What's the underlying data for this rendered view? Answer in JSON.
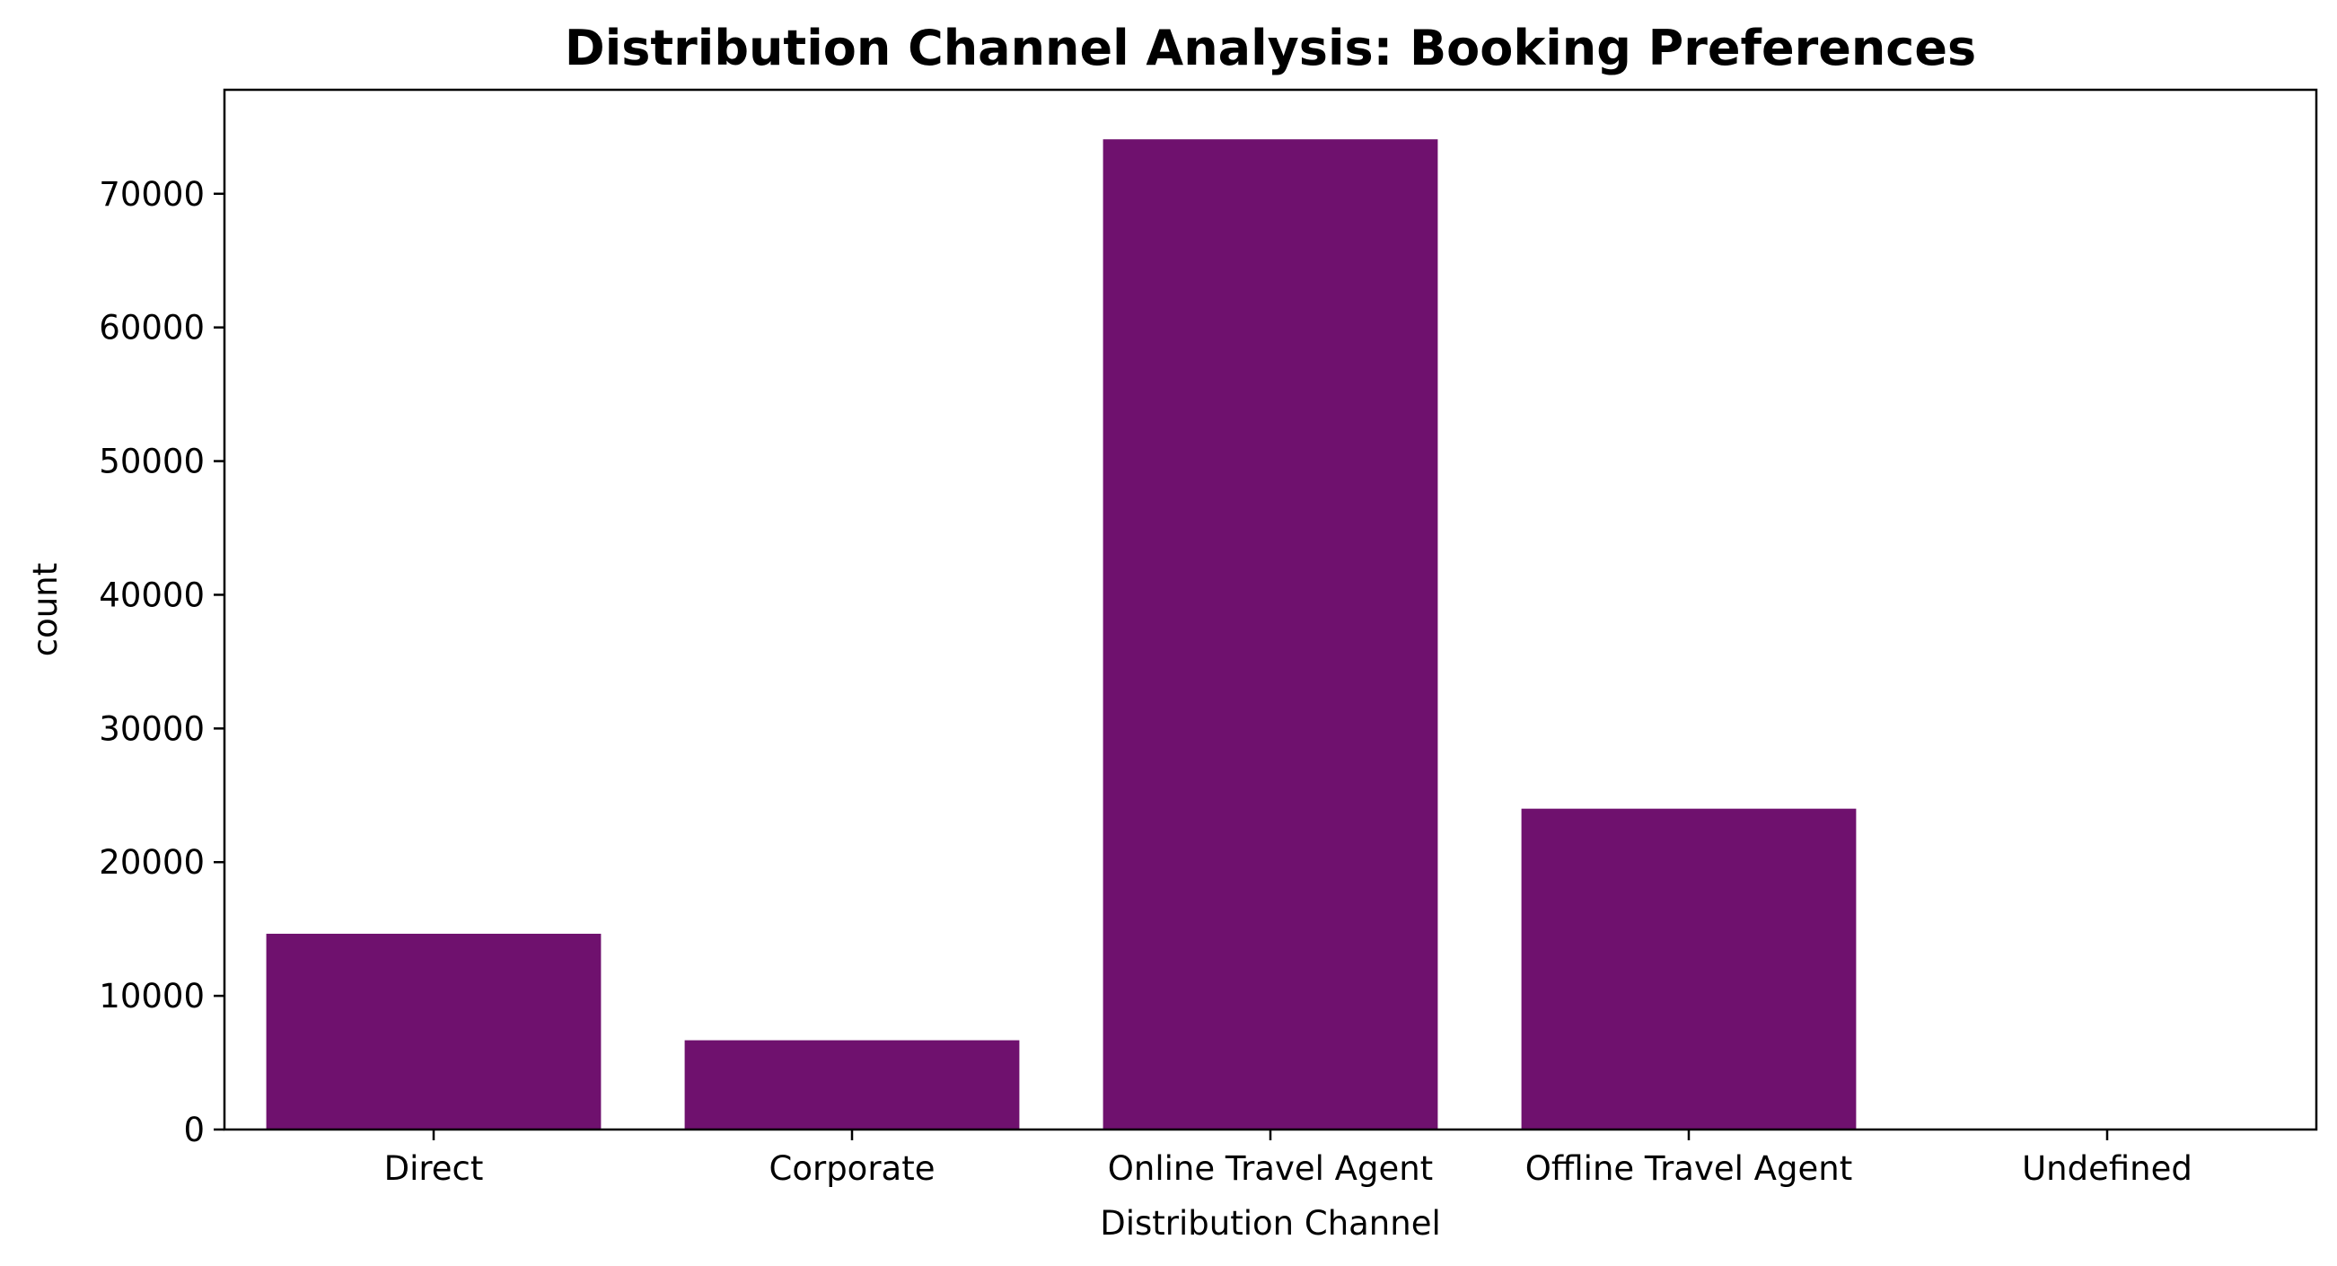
{
  "chart_data": {
    "type": "bar",
    "title": "Distribution Channel Analysis: Booking Preferences",
    "xlabel": "Distribution Channel",
    "ylabel": "count",
    "categories": [
      "Direct",
      "Corporate",
      "Online Travel Agent",
      "Offline Travel Agent",
      "Undefined"
    ],
    "values": [
      14645,
      6677,
      74072,
      24000,
      5
    ],
    "ylim": [
      0,
      77777
    ],
    "yticks": [
      0,
      10000,
      20000,
      30000,
      40000,
      50000,
      60000,
      70000
    ],
    "ytick_labels": [
      "0",
      "10000",
      "20000",
      "30000",
      "40000",
      "50000",
      "60000",
      "70000"
    ],
    "bar_color": "#6f116e",
    "grid": false,
    "legend": "none"
  }
}
